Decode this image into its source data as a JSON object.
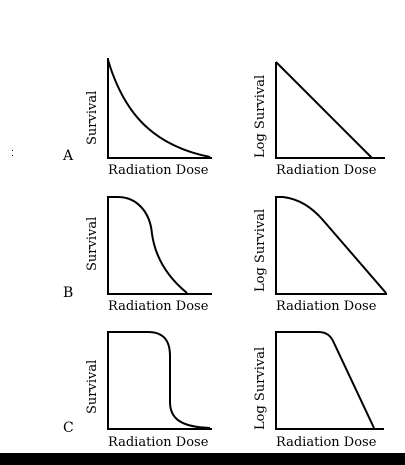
{
  "colors": {
    "ink": "#000000",
    "background": "#ffffff",
    "bottom_bar": "#000000"
  },
  "chart_data": [
    {
      "type": "line",
      "row": "A",
      "column": "left",
      "xlabel": "Radiation Dose",
      "ylabel": "Survival",
      "curve": "concave-decay",
      "x": [
        0,
        0.1,
        0.2,
        0.3,
        0.4,
        0.5,
        0.6,
        0.7,
        0.8,
        0.9,
        1.0
      ],
      "y": [
        1.0,
        0.72,
        0.53,
        0.38,
        0.27,
        0.19,
        0.13,
        0.08,
        0.04,
        0.015,
        0.0
      ]
    },
    {
      "type": "line",
      "row": "A",
      "column": "right",
      "xlabel": "Radiation Dose",
      "ylabel": "Log Survival",
      "curve": "straight-line",
      "x": [
        0,
        1.0
      ],
      "y": [
        1.0,
        0.0
      ]
    },
    {
      "type": "line",
      "row": "B",
      "column": "left",
      "xlabel": "Radiation Dose",
      "ylabel": "Survival",
      "curve": "shoulder-then-decay",
      "x": [
        0,
        0.1,
        0.2,
        0.3,
        0.4,
        0.45,
        0.5,
        0.6,
        0.7,
        0.8
      ],
      "y": [
        1.0,
        1.0,
        0.95,
        0.8,
        0.55,
        0.35,
        0.25,
        0.12,
        0.04,
        0.0
      ]
    },
    {
      "type": "line",
      "row": "B",
      "column": "right",
      "xlabel": "Radiation Dose",
      "ylabel": "Log Survival",
      "curve": "shoulder-then-linear",
      "x": [
        0,
        0.1,
        0.2,
        0.3,
        0.4,
        1.0
      ],
      "y": [
        1.0,
        0.99,
        0.94,
        0.85,
        0.74,
        0.0
      ]
    },
    {
      "type": "line",
      "row": "C",
      "column": "left",
      "xlabel": "Radiation Dose",
      "ylabel": "Survival",
      "curve": "wide-shoulder-steep-drop",
      "x": [
        0,
        0.4,
        0.5,
        0.65,
        0.65,
        0.75,
        1.0
      ],
      "y": [
        1.0,
        1.0,
        0.97,
        0.85,
        0.15,
        0.03,
        0.0
      ]
    },
    {
      "type": "line",
      "row": "C",
      "column": "right",
      "xlabel": "Radiation Dose",
      "ylabel": "Log Survival",
      "curve": "wide-shoulder-then-steep-linear",
      "x": [
        0,
        0.35,
        0.45,
        1.0
      ],
      "y": [
        1.0,
        1.0,
        0.95,
        0.0
      ]
    }
  ],
  "rows": [
    {
      "label": "A"
    },
    {
      "label": "B"
    },
    {
      "label": "C"
    }
  ]
}
